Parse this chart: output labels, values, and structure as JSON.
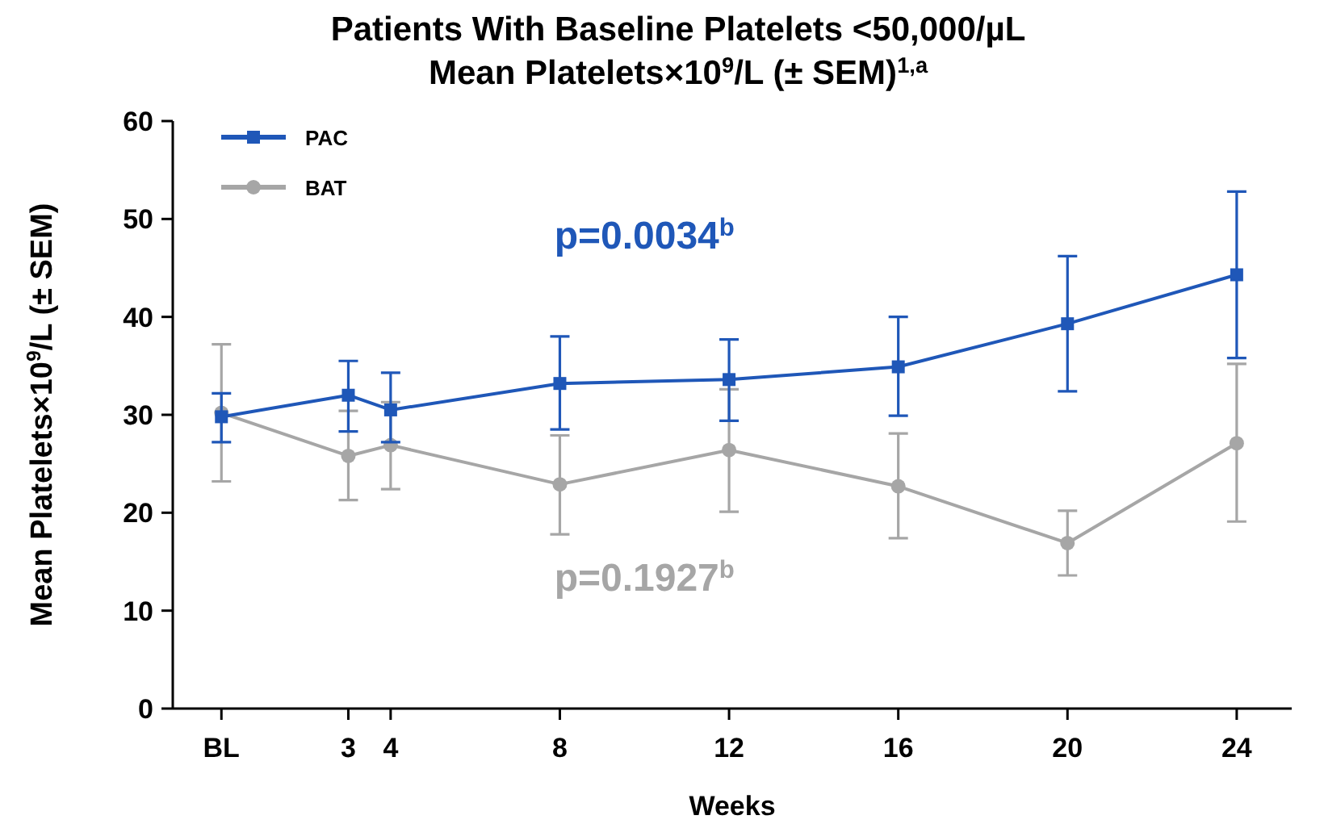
{
  "chart_data": {
    "type": "line",
    "title": "Patients With Baseline Platelets <50,000/µL",
    "subtitle": "Mean Platelets×10$^{9}$/L (± SEM)$^{1,a}$",
    "xlabel": "Weeks",
    "ylabel": "Mean Platelets×10$^{9}$/L (± SEM)",
    "x": [
      0,
      3,
      4,
      8,
      12,
      16,
      20,
      24
    ],
    "xlim": [
      -1.15,
      25.3
    ],
    "xticks": [
      {
        "value": 0,
        "label": "BL"
      },
      3,
      4,
      8,
      12,
      16,
      20,
      24
    ],
    "ylim": [
      0,
      60
    ],
    "yticks": [
      0,
      10,
      20,
      30,
      40,
      50,
      60
    ],
    "series": [
      {
        "name": "PAC",
        "color": "#1f57b8",
        "marker": "square",
        "values": [
          29.8,
          32,
          30.5,
          33.2,
          33.6,
          34.9,
          39.3,
          44.3
        ],
        "errors": [
          [
            27.2,
            32.2
          ],
          [
            28.3,
            35.5
          ],
          [
            27.2,
            34.3
          ],
          [
            28.5,
            38
          ],
          [
            29.4,
            37.7
          ],
          [
            29.9,
            40
          ],
          [
            32.4,
            46.2
          ],
          [
            35.8,
            52.8
          ]
        ]
      },
      {
        "name": "BAT",
        "color": "#a6a6a6",
        "marker": "circle",
        "values": [
          30.2,
          25.8,
          26.9,
          22.9,
          26.4,
          22.7,
          16.9,
          27.1
        ],
        "errors": [
          [
            23.2,
            37.2
          ],
          [
            21.3,
            30.4
          ],
          [
            22.4,
            31.3
          ],
          [
            17.8,
            27.9
          ],
          [
            20.1,
            32.6
          ],
          [
            17.4,
            28.1
          ],
          [
            13.6,
            20.2
          ],
          [
            19.1,
            35.2
          ]
        ]
      }
    ],
    "annotations": [
      "p=0.0034$^{b}$",
      "p=0.1927$^{b}$"
    ],
    "grid": false,
    "legend": "top left",
    "line_style": "solid"
  }
}
